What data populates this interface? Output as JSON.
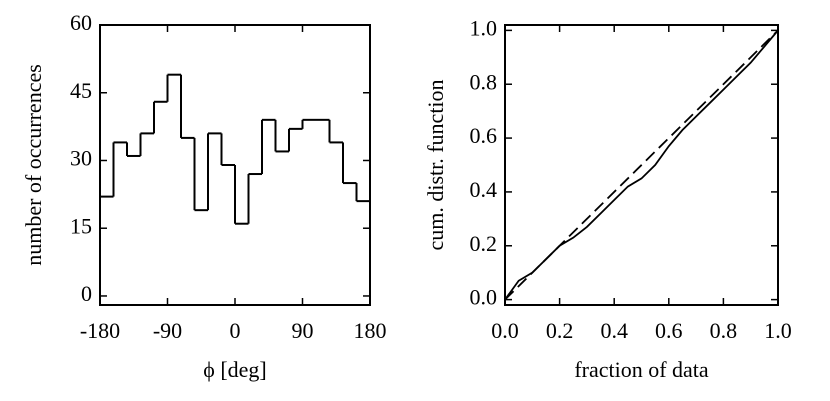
{
  "chart_data": [
    {
      "type": "histogram",
      "xlabel": "ϕ [deg]",
      "ylabel": "number of occurrences",
      "bins": [
        -180,
        -162,
        -144,
        -126,
        -108,
        -90,
        -72,
        -54,
        -36,
        -18,
        0,
        18,
        36,
        54,
        72,
        90,
        108,
        126,
        144,
        162,
        180
      ],
      "values": [
        22,
        34,
        31,
        36,
        43,
        49,
        35,
        19,
        36,
        29,
        16,
        27,
        39,
        32,
        37,
        39,
        39,
        34,
        25,
        21
      ],
      "color": "#000000",
      "xlim": [
        -180,
        180
      ],
      "xticks": [
        -180,
        -90,
        0,
        90,
        180
      ],
      "ylim": [
        -2,
        60
      ],
      "yticks": [
        0,
        15,
        30,
        45,
        60
      ]
    },
    {
      "type": "line",
      "xlabel": "fraction of data",
      "ylabel": "cum. distr. function",
      "series": [
        {
          "color": "#000000",
          "style": "solid",
          "x": [
            0,
            0.05,
            0.1,
            0.15,
            0.2,
            0.25,
            0.3,
            0.35,
            0.4,
            0.45,
            0.5,
            0.55,
            0.6,
            0.65,
            0.7,
            0.75,
            0.8,
            0.85,
            0.9,
            0.95,
            1.0
          ],
          "values": [
            0,
            0.07,
            0.1,
            0.15,
            0.2,
            0.23,
            0.27,
            0.32,
            0.37,
            0.42,
            0.45,
            0.5,
            0.57,
            0.63,
            0.68,
            0.73,
            0.78,
            0.83,
            0.88,
            0.94,
            1.0
          ]
        },
        {
          "color": "#000000",
          "style": "dashed",
          "x": [
            0,
            1
          ],
          "values": [
            0,
            1
          ]
        }
      ],
      "xlim": [
        0,
        1
      ],
      "xticks": [
        {
          "value": 0,
          "label": "0.0"
        },
        0.2,
        0.4,
        0.6,
        0.8,
        {
          "value": 1,
          "label": "1.0"
        }
      ],
      "ylim": [
        -0.02,
        1.02
      ],
      "yticks": [
        {
          "value": 0,
          "label": "0.0"
        },
        0.2,
        0.4,
        0.6,
        0.8,
        {
          "value": 1,
          "label": "1.0"
        }
      ]
    }
  ]
}
